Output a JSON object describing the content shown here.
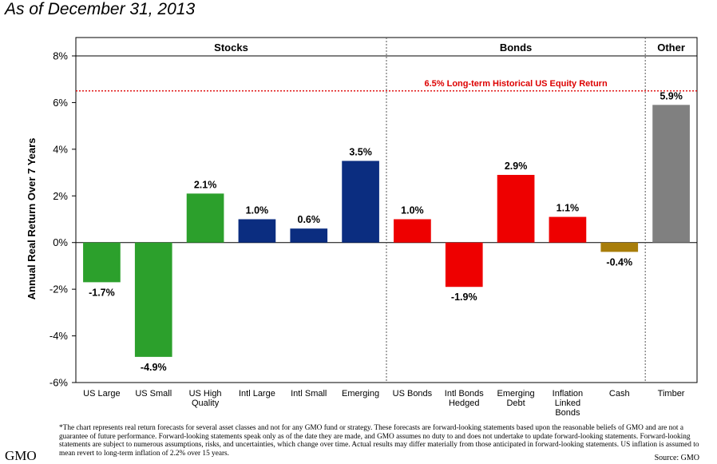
{
  "heading": "As of December 31, 2013",
  "chart_data": {
    "type": "bar",
    "title": "",
    "ylabel": "Annual Real Return Over 7 Years",
    "ylim": [
      -6,
      8
    ],
    "yticks": [
      "-6%",
      "-4%",
      "-2%",
      "0%",
      "2%",
      "4%",
      "6%",
      "8%"
    ],
    "yticks_values": [
      -6,
      -4,
      -2,
      0,
      2,
      4,
      6,
      8
    ],
    "groups": [
      {
        "label": "Stocks",
        "start": 0,
        "end": 5
      },
      {
        "label": "Bonds",
        "start": 6,
        "end": 10
      },
      {
        "label": "Other",
        "start": 11,
        "end": 11
      }
    ],
    "categories": [
      "US Large",
      "US Small",
      "US High\nQuality",
      "Intl Large",
      "Intl Small",
      "Emerging",
      "US Bonds",
      "Intl Bonds\nHedged",
      "Emerging\nDebt",
      "Inflation\nLinked\nBonds",
      "Cash",
      "Timber"
    ],
    "values": [
      -1.7,
      -4.9,
      2.1,
      1.0,
      0.6,
      3.5,
      1.0,
      -1.9,
      2.9,
      1.1,
      -0.4,
      5.9
    ],
    "value_labels": [
      "-1.7%",
      "-4.9%",
      "2.1%",
      "1.0%",
      "0.6%",
      "3.5%",
      "1.0%",
      "-1.9%",
      "2.9%",
      "1.1%",
      "-0.4%",
      "5.9%"
    ],
    "colors": [
      "#2ca02c",
      "#2ca02c",
      "#2ca02c",
      "#0b2d80",
      "#0b2d80",
      "#0b2d80",
      "#ee0000",
      "#ee0000",
      "#ee0000",
      "#ee0000",
      "#a87d0a",
      "#808080"
    ],
    "reference_line": {
      "value": 6.5,
      "label": "6.5% Long-term Historical US Equity Return",
      "color": "#dd0000"
    },
    "grid": false
  },
  "footnote": "*The chart represents real return forecasts for several asset classes and not for any GMO fund or strategy.  These forecasts are forward-looking statements based upon the reasonable beliefs of GMO and are not a guarantee of future performance.  Forward-looking statements speak only as of the date they are made, and GMO assumes no duty to and does not undertake to update forward-looking statements.  Forward-looking statements are subject to numerous assumptions, risks, and uncertainties, which change over time.  Actual results may differ materially from those anticipated in forward-looking statements.  US inflation is assumed to mean revert to long-term inflation of 2.2% over 15 years.",
  "brand": "GMO",
  "source": "Source:  GMO"
}
